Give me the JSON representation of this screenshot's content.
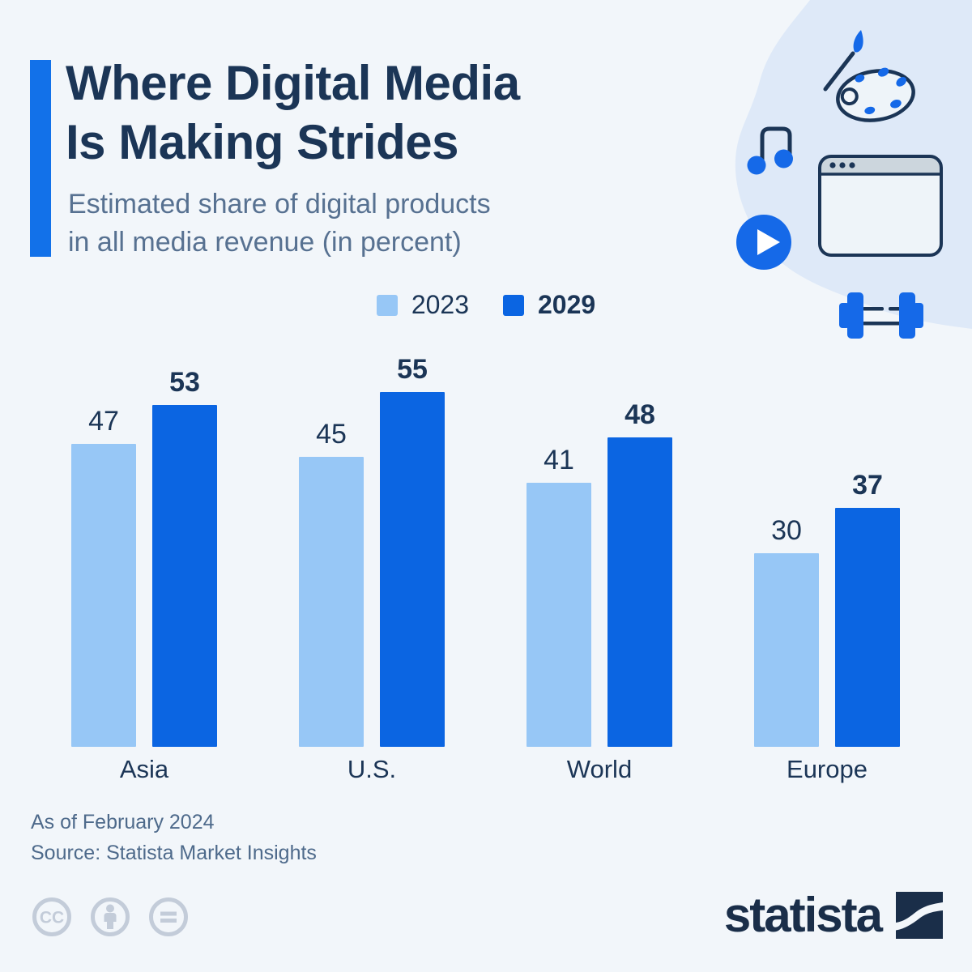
{
  "page": {
    "background_color": "#f2f6fa",
    "blob_color": "#dee9f8"
  },
  "header": {
    "title_line1": "Where Digital Media",
    "title_line2": "Is Making Strides",
    "subtitle_line1": "Estimated share of digital products",
    "subtitle_line2": "in all media revenue (in percent)",
    "accent_color": "#1271e9",
    "title_color": "#1b3556",
    "subtitle_color": "#577191"
  },
  "decor_icons": [
    "paint-palette-icon",
    "music-note-icon",
    "play-button-icon",
    "browser-window-icon",
    "dumbbell-icon"
  ],
  "chart_data": {
    "type": "bar",
    "categories": [
      "Asia",
      "U.S.",
      "World",
      "Europe"
    ],
    "series": [
      {
        "name": "2023",
        "color": "#97c7f6",
        "bold_labels": false,
        "values": [
          47,
          45,
          41,
          30
        ]
      },
      {
        "name": "2029",
        "color": "#0b65e2",
        "bold_labels": true,
        "values": [
          53,
          55,
          48,
          37
        ]
      }
    ],
    "title": "Where Digital Media Is Making Strides",
    "subtitle": "Estimated share of digital products in all media revenue (in percent)",
    "unit": "percent",
    "ylim": [
      0,
      58
    ],
    "grid": false,
    "value_labels_shown": true,
    "legend_position": "top-center",
    "label_color": "#1b3556"
  },
  "footer": {
    "note": "As of February 2024",
    "source": "Source: Statista Market Insights"
  },
  "branding": {
    "logo_text": "statista",
    "license_icons": [
      "cc-icon",
      "cc-by-icon",
      "cc-nd-icon"
    ]
  }
}
